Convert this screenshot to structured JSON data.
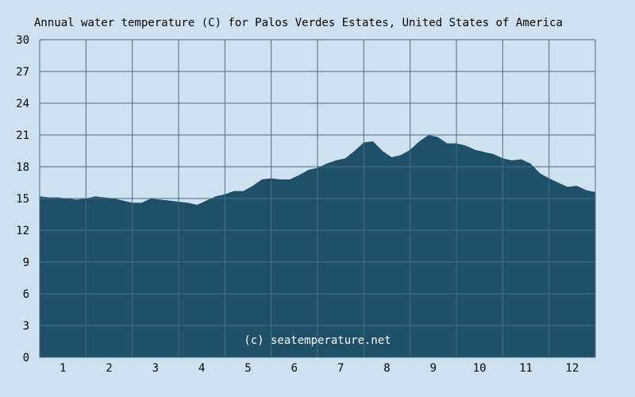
{
  "chart_data": {
    "type": "area",
    "title": "Annual water temperature (C) for Palos Verdes Estates, United States of America",
    "credit": "(c) seatemperature.net",
    "xlabel": "",
    "ylabel": "",
    "ylim": [
      0,
      30
    ],
    "yticks": [
      "0",
      "3",
      "6",
      "9",
      "12",
      "15",
      "18",
      "21",
      "24",
      "27",
      "30"
    ],
    "xticks": [
      "1",
      "2",
      "3",
      "4",
      "5",
      "6",
      "7",
      "8",
      "9",
      "10",
      "11",
      "12"
    ],
    "grid": true,
    "legend": "none",
    "colors": {
      "background": "#cde2ee",
      "fill": "#1e5069",
      "grid": "#4a6a83",
      "credit": "#ffffff"
    },
    "series": [
      {
        "x": [
          0.0,
          0.2,
          0.4,
          0.6,
          0.8,
          1.0,
          1.2,
          1.4,
          1.6,
          1.8,
          2.0,
          2.2,
          2.4,
          2.6,
          2.8,
          3.0,
          3.2,
          3.4,
          3.6,
          3.8,
          4.0,
          4.2,
          4.4,
          4.6,
          4.8,
          5.0,
          5.2,
          5.4,
          5.6,
          5.8,
          6.0,
          6.2,
          6.4,
          6.6,
          6.8,
          7.0,
          7.2,
          7.4,
          7.6,
          7.8,
          8.0,
          8.2,
          8.4,
          8.6,
          8.8,
          9.0,
          9.2,
          9.4,
          9.6,
          9.8,
          10.0,
          10.2,
          10.4,
          10.6,
          10.8,
          11.0,
          11.2,
          11.4,
          11.6,
          11.8,
          12.0
        ],
        "y": [
          15.2,
          15.1,
          15.1,
          15.0,
          14.9,
          15.0,
          15.2,
          15.1,
          15.0,
          14.8,
          14.6,
          14.6,
          15.0,
          14.9,
          14.8,
          14.7,
          14.6,
          14.4,
          14.8,
          15.2,
          15.4,
          15.7,
          15.7,
          16.2,
          16.8,
          16.9,
          16.8,
          16.8,
          17.2,
          17.7,
          17.9,
          18.3,
          18.6,
          18.8,
          19.5,
          20.3,
          20.4,
          19.5,
          18.9,
          19.1,
          19.6,
          20.4,
          21.0,
          20.8,
          20.2,
          20.2,
          20.0,
          19.6,
          19.4,
          19.2,
          18.8,
          18.6,
          18.7,
          18.3,
          17.4,
          16.9,
          16.5,
          16.1,
          16.2,
          15.8,
          15.6
        ]
      }
    ]
  }
}
